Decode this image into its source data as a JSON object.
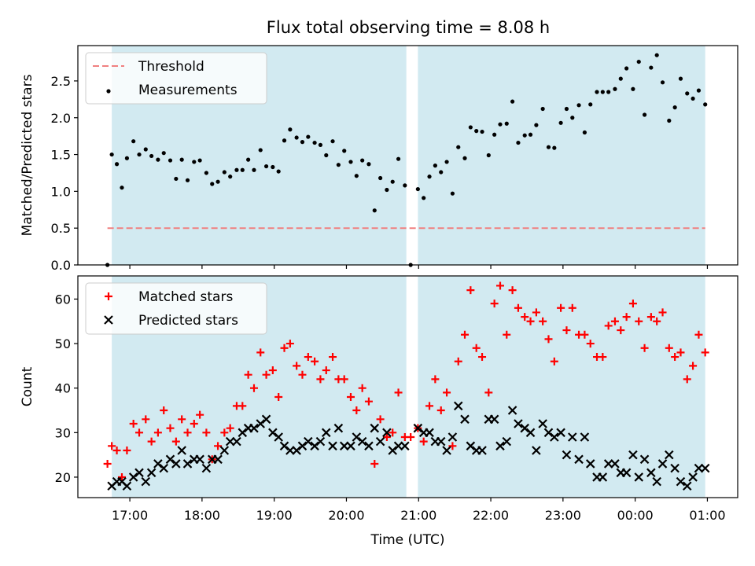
{
  "chart_data": [
    {
      "type": "scatter",
      "title": "Flux total observing time = 8.08 h",
      "ylabel": "Matched/Predicted stars",
      "xlabel": "",
      "xlim": [
        16.28,
        25.42
      ],
      "ylim": [
        0,
        2.98
      ],
      "x_ticks": [
        17,
        18,
        19,
        20,
        21,
        22,
        23,
        24,
        25
      ],
      "y_ticks": [
        0.0,
        0.5,
        1.0,
        1.5,
        2.0,
        2.5
      ],
      "y_tick_labels": [
        "0.0",
        "0.5",
        "1.0",
        "1.5",
        "2.0",
        "2.5"
      ],
      "shaded_intervals": [
        [
          16.75,
          20.83
        ],
        [
          20.99,
          24.97
        ]
      ],
      "shade_color": "#add8e6",
      "legend_position": "top-left",
      "legend": [
        {
          "label": "Threshold",
          "style": "dashed-line",
          "color": "#f08080"
        },
        {
          "label": "Measurements",
          "style": "dot",
          "color": "#000000"
        }
      ],
      "threshold": {
        "value": 0.5,
        "x_range": [
          16.69,
          24.97
        ],
        "color": "#f08080"
      },
      "series": [
        {
          "name": "Measurements",
          "color": "#000000",
          "x": [
            16.69,
            16.75,
            16.82,
            16.89,
            16.96,
            17.05,
            17.13,
            17.22,
            17.3,
            17.39,
            17.47,
            17.56,
            17.64,
            17.72,
            17.8,
            17.89,
            17.97,
            18.06,
            18.14,
            18.22,
            18.31,
            18.39,
            18.48,
            18.56,
            18.64,
            18.72,
            18.81,
            18.89,
            18.98,
            19.06,
            19.14,
            19.22,
            19.31,
            19.39,
            19.47,
            19.56,
            19.64,
            19.72,
            19.81,
            19.89,
            19.97,
            20.06,
            20.14,
            20.22,
            20.31,
            20.39,
            20.47,
            20.56,
            20.64,
            20.72,
            20.81,
            20.89,
            20.99,
            21.07,
            21.15,
            21.23,
            21.31,
            21.39,
            21.47,
            21.55,
            21.64,
            21.72,
            21.8,
            21.88,
            21.97,
            22.05,
            22.13,
            22.22,
            22.3,
            22.38,
            22.47,
            22.55,
            22.63,
            22.72,
            22.8,
            22.88,
            22.97,
            23.05,
            23.13,
            23.22,
            23.3,
            23.38,
            23.47,
            23.55,
            23.63,
            23.72,
            23.8,
            23.88,
            23.97,
            24.05,
            24.13,
            24.22,
            24.3,
            24.38,
            24.47,
            24.55,
            24.63,
            24.72,
            24.8,
            24.88,
            24.97
          ],
          "y": [
            0.0,
            1.5,
            1.37,
            1.05,
            1.45,
            1.68,
            1.5,
            1.57,
            1.48,
            1.43,
            1.52,
            1.42,
            1.17,
            1.43,
            1.15,
            1.4,
            1.42,
            1.25,
            1.1,
            1.13,
            1.26,
            1.2,
            1.29,
            1.29,
            1.43,
            1.29,
            1.56,
            1.34,
            1.33,
            1.27,
            1.69,
            1.84,
            1.73,
            1.67,
            1.74,
            1.66,
            1.63,
            1.49,
            1.68,
            1.36,
            1.55,
            1.4,
            1.21,
            1.42,
            1.37,
            0.74,
            1.18,
            1.02,
            1.13,
            1.44,
            1.08,
            0.0,
            1.03,
            0.91,
            1.2,
            1.35,
            1.26,
            1.4,
            0.97,
            1.6,
            1.45,
            1.87,
            1.82,
            1.81,
            1.49,
            1.77,
            1.91,
            1.92,
            2.22,
            1.66,
            1.76,
            1.77,
            1.9,
            2.12,
            1.6,
            1.59,
            1.93,
            2.12,
            2.0,
            2.17,
            1.8,
            2.18,
            2.35,
            2.35,
            2.35,
            2.39,
            2.53,
            2.67,
            2.39,
            2.76,
            2.04,
            2.68,
            2.85,
            2.48,
            1.96,
            2.14,
            2.53,
            2.33,
            2.26,
            2.37,
            2.18
          ]
        }
      ]
    },
    {
      "type": "scatter",
      "title": "",
      "ylabel": "Count",
      "xlabel": "Time (UTC)",
      "xlim": [
        16.28,
        25.42
      ],
      "ylim": [
        15.4,
        65.2
      ],
      "x_ticks": [
        17,
        18,
        19,
        20,
        21,
        22,
        23,
        24,
        25
      ],
      "x_tick_labels": [
        "17:00",
        "18:00",
        "19:00",
        "20:00",
        "21:00",
        "22:00",
        "23:00",
        "00:00",
        "01:00"
      ],
      "y_ticks": [
        20,
        30,
        40,
        50,
        60
      ],
      "y_tick_labels": [
        "20",
        "30",
        "40",
        "50",
        "60"
      ],
      "shaded_intervals": [
        [
          16.75,
          20.83
        ],
        [
          20.99,
          24.97
        ]
      ],
      "shade_color": "#add8e6",
      "legend_position": "top-left",
      "legend": [
        {
          "label": "Matched stars",
          "marker": "+",
          "color": "#ff0000"
        },
        {
          "label": "Predicted stars",
          "marker": "x",
          "color": "#000000"
        }
      ],
      "series": [
        {
          "name": "Matched stars",
          "marker": "+",
          "color": "#ff0000",
          "x": [
            16.69,
            16.75,
            16.82,
            16.89,
            16.96,
            17.05,
            17.13,
            17.22,
            17.3,
            17.39,
            17.47,
            17.56,
            17.64,
            17.72,
            17.8,
            17.89,
            17.97,
            18.06,
            18.14,
            18.22,
            18.31,
            18.39,
            18.48,
            18.56,
            18.64,
            18.72,
            18.81,
            18.89,
            18.98,
            19.06,
            19.14,
            19.22,
            19.31,
            19.39,
            19.47,
            19.56,
            19.64,
            19.72,
            19.81,
            19.89,
            19.97,
            20.06,
            20.14,
            20.22,
            20.31,
            20.39,
            20.47,
            20.56,
            20.64,
            20.72,
            20.81,
            20.89,
            20.99,
            21.07,
            21.15,
            21.23,
            21.31,
            21.39,
            21.47,
            21.55,
            21.64,
            21.72,
            21.8,
            21.88,
            21.97,
            22.05,
            22.13,
            22.22,
            22.3,
            22.38,
            22.47,
            22.55,
            22.63,
            22.72,
            22.8,
            22.88,
            22.97,
            23.05,
            23.13,
            23.22,
            23.3,
            23.38,
            23.47,
            23.55,
            23.63,
            23.72,
            23.8,
            23.88,
            23.97,
            24.05,
            24.13,
            24.22,
            24.3,
            24.38,
            24.47,
            24.55,
            24.63,
            24.72,
            24.8,
            24.88,
            24.97
          ],
          "y": [
            23,
            27,
            26,
            20,
            26,
            32,
            30,
            33,
            28,
            30,
            35,
            31,
            28,
            33,
            30,
            32,
            34,
            30,
            24,
            27,
            30,
            31,
            36,
            36,
            43,
            40,
            48,
            43,
            44,
            38,
            49,
            50,
            45,
            43,
            47,
            46,
            42,
            44,
            47,
            42,
            42,
            38,
            35,
            40,
            37,
            23,
            33,
            29,
            30,
            39,
            29,
            29,
            31,
            28,
            36,
            42,
            35,
            39,
            27,
            46,
            52,
            62,
            49,
            47,
            39,
            59,
            63,
            52,
            62,
            58,
            56,
            55,
            57,
            55,
            51,
            46,
            58,
            53,
            58,
            52,
            52,
            50,
            47,
            47,
            54,
            55,
            53,
            56,
            59,
            55,
            49,
            56,
            55,
            57,
            49,
            47,
            48,
            42,
            45,
            52,
            48
          ]
        },
        {
          "name": "Predicted stars",
          "marker": "x",
          "color": "#000000",
          "x": [
            16.75,
            16.82,
            16.89,
            16.96,
            17.05,
            17.13,
            17.22,
            17.3,
            17.39,
            17.47,
            17.56,
            17.64,
            17.72,
            17.8,
            17.89,
            17.97,
            18.06,
            18.14,
            18.22,
            18.31,
            18.39,
            18.48,
            18.56,
            18.64,
            18.72,
            18.81,
            18.89,
            18.98,
            19.06,
            19.14,
            19.22,
            19.31,
            19.39,
            19.47,
            19.56,
            19.64,
            19.72,
            19.81,
            19.89,
            19.97,
            20.06,
            20.14,
            20.22,
            20.31,
            20.39,
            20.47,
            20.56,
            20.64,
            20.72,
            20.81,
            20.99,
            21.07,
            21.15,
            21.23,
            21.31,
            21.39,
            21.47,
            21.55,
            21.64,
            21.72,
            21.8,
            21.88,
            21.97,
            22.05,
            22.13,
            22.22,
            22.3,
            22.38,
            22.47,
            22.55,
            22.63,
            22.72,
            22.8,
            22.88,
            22.97,
            23.05,
            23.13,
            23.22,
            23.3,
            23.38,
            23.47,
            23.55,
            23.63,
            23.72,
            23.8,
            23.88,
            23.97,
            24.05,
            24.13,
            24.22,
            24.3,
            24.38,
            24.47,
            24.55,
            24.63,
            24.72,
            24.8,
            24.88,
            24.97
          ],
          "y": [
            18,
            19,
            19,
            18,
            20,
            21,
            19,
            21,
            23,
            22,
            24,
            23,
            26,
            23,
            24,
            24,
            22,
            24,
            24,
            26,
            28,
            28,
            30,
            31,
            31,
            32,
            33,
            30,
            29,
            27,
            26,
            26,
            27,
            28,
            27,
            28,
            30,
            27,
            31,
            27,
            27,
            29,
            28,
            27,
            31,
            28,
            30,
            26,
            27,
            27,
            31,
            30,
            30,
            28,
            28,
            26,
            29,
            36,
            33,
            27,
            26,
            26,
            33,
            33,
            27,
            28,
            35,
            32,
            31,
            30,
            26,
            32,
            30,
            29,
            30,
            25,
            29,
            24,
            29,
            23,
            20,
            20,
            23,
            23,
            21,
            21,
            25,
            20,
            24,
            21,
            19,
            23,
            25,
            22,
            19,
            18,
            20,
            22,
            22
          ]
        }
      ]
    }
  ]
}
